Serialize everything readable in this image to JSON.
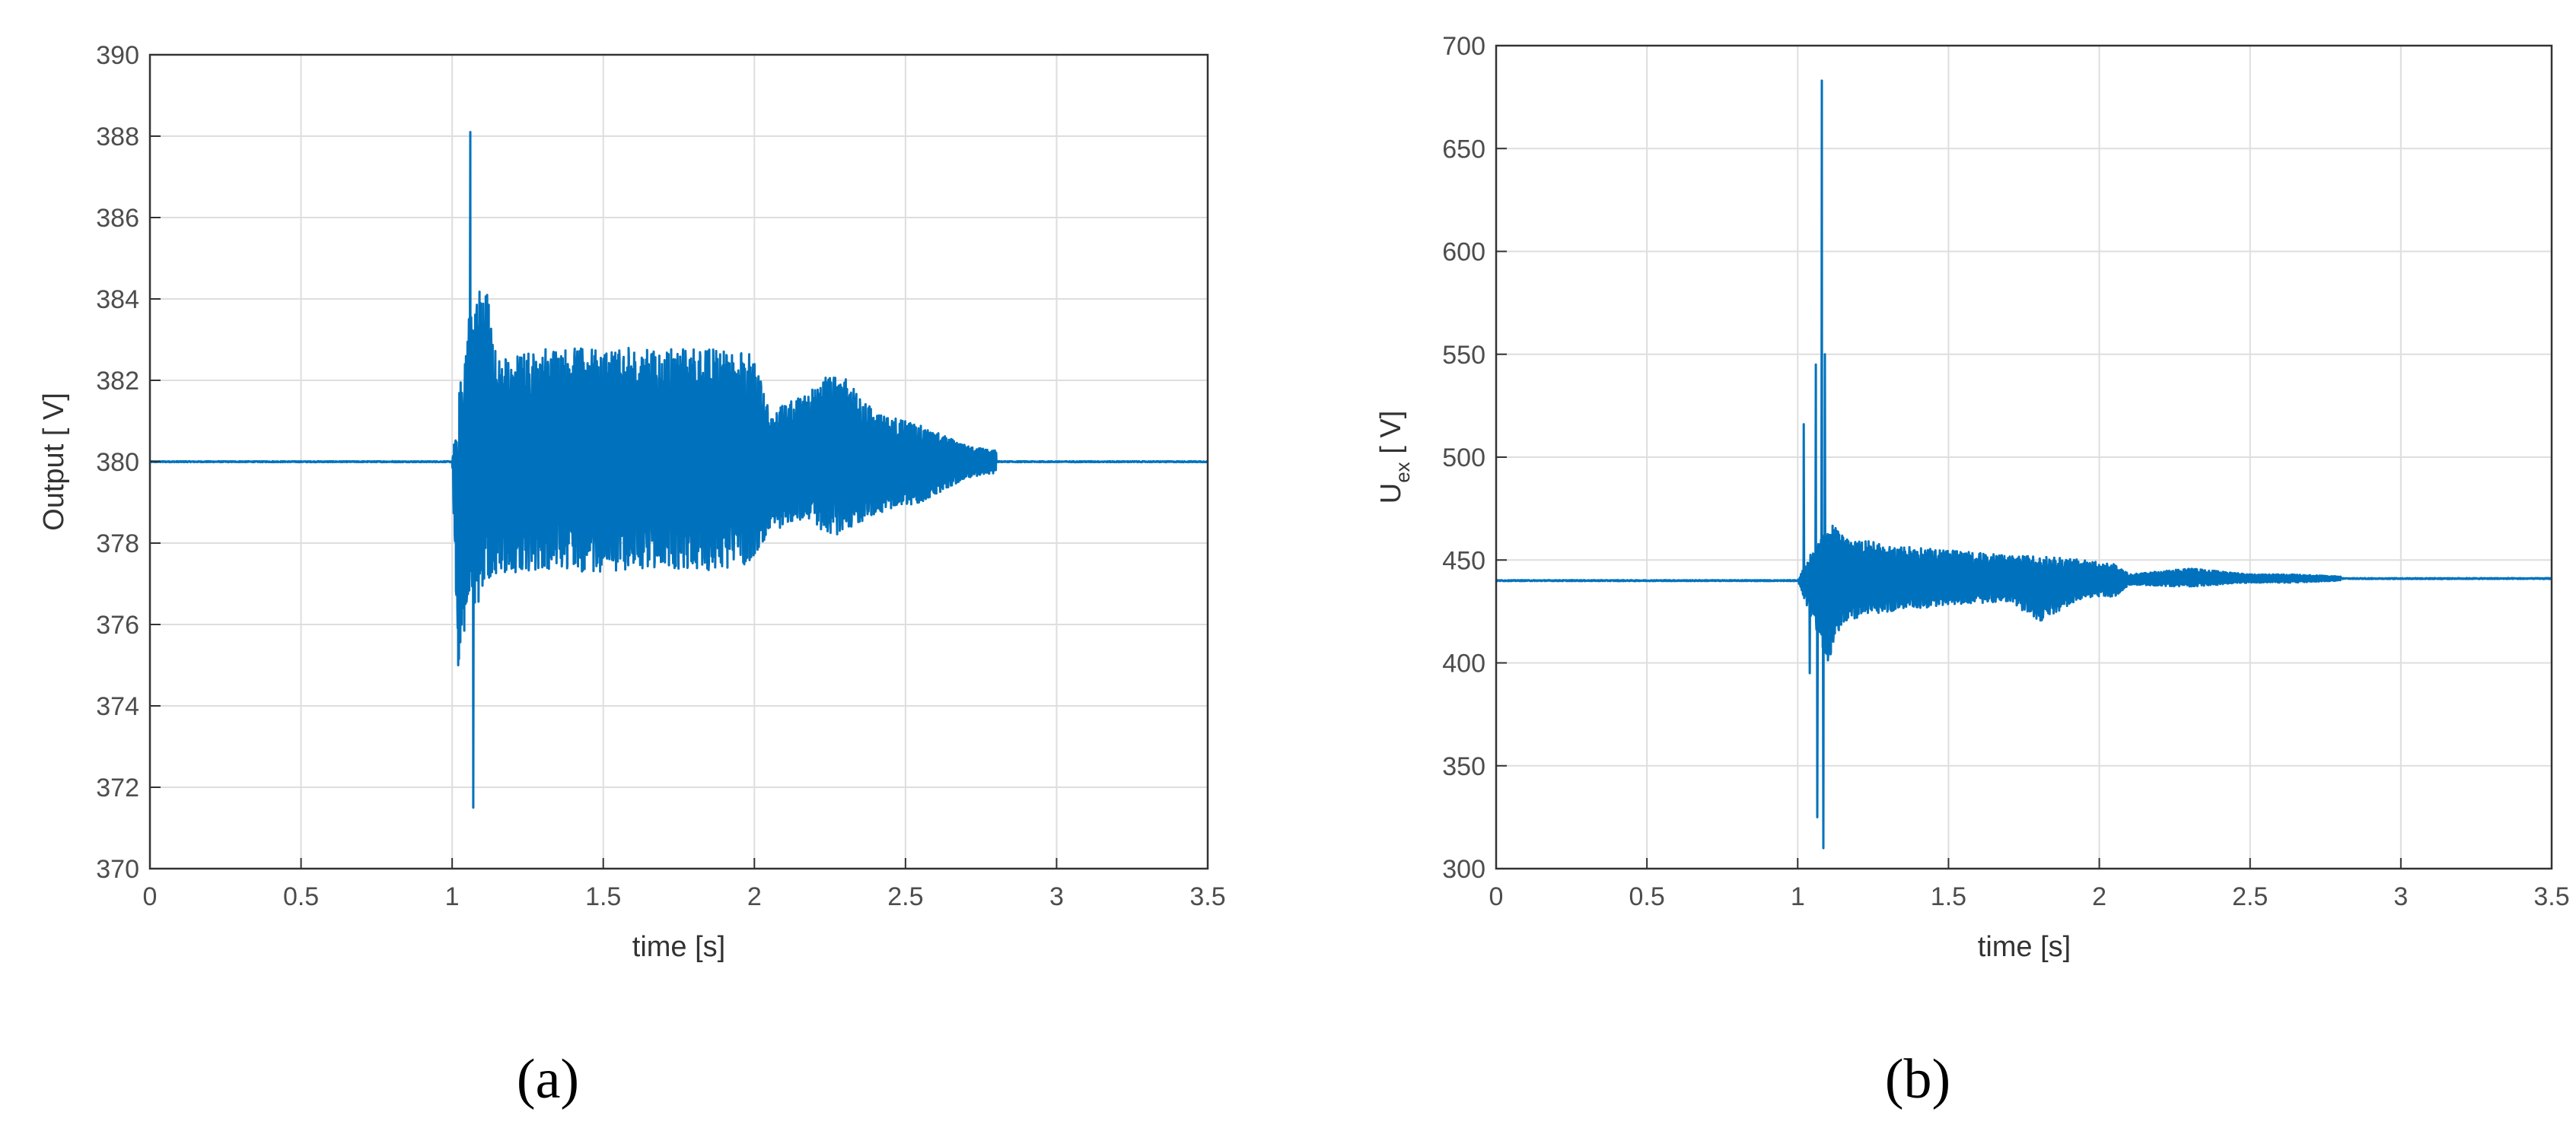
{
  "chart_data": [
    {
      "type": "line",
      "panel_label": "(a)",
      "title": "",
      "xlabel": "time [s]",
      "ylabel": "Output [ V]",
      "xlim": [
        0,
        3.5
      ],
      "ylim": [
        370,
        390
      ],
      "xticks": [
        0,
        0.5,
        1,
        1.5,
        2,
        2.5,
        3,
        3.5
      ],
      "xtick_labels": [
        "0",
        "0.5",
        "1",
        "1.5",
        "2",
        "2.5",
        "3",
        "3.5"
      ],
      "yticks": [
        370,
        372,
        374,
        376,
        378,
        380,
        382,
        384,
        386,
        388,
        390
      ],
      "ytick_labels": [
        "370",
        "372",
        "374",
        "376",
        "378",
        "380",
        "382",
        "384",
        "386",
        "388",
        "390"
      ],
      "grid": true,
      "line_color": "#0072bd",
      "series": [
        {
          "steady_value": 380,
          "disturbance_start": 1.0,
          "peaks": [
            {
              "x": 1.02,
              "y": 375.0
            },
            {
              "x": 1.06,
              "y": 388.1
            },
            {
              "x": 1.07,
              "y": 371.5
            }
          ],
          "envelope": [
            {
              "x": 1.0,
              "upper": 380.0,
              "lower": 380.0
            },
            {
              "x": 1.02,
              "upper": 381.5,
              "lower": 375.0
            },
            {
              "x": 1.05,
              "upper": 383.5,
              "lower": 376.2
            },
            {
              "x": 1.08,
              "upper": 384.3,
              "lower": 376.3
            },
            {
              "x": 1.12,
              "upper": 384.2,
              "lower": 377.0
            },
            {
              "x": 1.15,
              "upper": 382.5,
              "lower": 377.2
            },
            {
              "x": 1.3,
              "upper": 382.8,
              "lower": 377.3
            },
            {
              "x": 1.5,
              "upper": 382.8,
              "lower": 377.3
            },
            {
              "x": 1.7,
              "upper": 382.8,
              "lower": 377.4
            },
            {
              "x": 1.85,
              "upper": 382.8,
              "lower": 377.3
            },
            {
              "x": 2.0,
              "upper": 382.7,
              "lower": 377.5
            },
            {
              "x": 2.05,
              "upper": 381.2,
              "lower": 378.3
            },
            {
              "x": 2.15,
              "upper": 381.6,
              "lower": 378.5
            },
            {
              "x": 2.27,
              "upper": 382.3,
              "lower": 378.2
            },
            {
              "x": 2.4,
              "upper": 381.2,
              "lower": 378.7
            },
            {
              "x": 2.55,
              "upper": 380.9,
              "lower": 379.0
            },
            {
              "x": 2.7,
              "upper": 380.4,
              "lower": 379.6
            },
            {
              "x": 2.9,
              "upper": 380.15,
              "lower": 379.85
            },
            {
              "x": 3.1,
              "upper": 380.05,
              "lower": 379.95
            },
            {
              "x": 3.5,
              "upper": 380.05,
              "lower": 379.95
            }
          ]
        }
      ]
    },
    {
      "type": "line",
      "panel_label": "(b)",
      "title": "",
      "xlabel": "time [s]",
      "ylabel_main": "U",
      "ylabel_sub": "ex",
      "ylabel_unit": " [ V]",
      "xlim": [
        0,
        3.5
      ],
      "ylim": [
        300,
        700
      ],
      "xticks": [
        0,
        0.5,
        1,
        1.5,
        2,
        2.5,
        3,
        3.5
      ],
      "xtick_labels": [
        "0",
        "0.5",
        "1",
        "1.5",
        "2",
        "2.5",
        "3",
        "3.5"
      ],
      "yticks": [
        300,
        350,
        400,
        450,
        500,
        550,
        600,
        650,
        700
      ],
      "ytick_labels": [
        "300",
        "350",
        "400",
        "450",
        "500",
        "550",
        "600",
        "650",
        "700"
      ],
      "grid": true,
      "line_color": "#0072bd",
      "series": [
        {
          "steady_value": 440,
          "final_value": 441,
          "disturbance_start": 1.0,
          "peaks": [
            {
              "x": 1.02,
              "y": 516
            },
            {
              "x": 1.04,
              "y": 395
            },
            {
              "x": 1.06,
              "y": 545
            },
            {
              "x": 1.065,
              "y": 325
            },
            {
              "x": 1.08,
              "y": 683
            },
            {
              "x": 1.085,
              "y": 310
            },
            {
              "x": 1.09,
              "y": 550
            }
          ],
          "envelope": [
            {
              "x": 1.0,
              "upper": 440,
              "lower": 440
            },
            {
              "x": 1.1,
              "upper": 470,
              "lower": 400
            },
            {
              "x": 1.15,
              "upper": 462,
              "lower": 420
            },
            {
              "x": 1.3,
              "upper": 457,
              "lower": 425
            },
            {
              "x": 1.5,
              "upper": 455,
              "lower": 428
            },
            {
              "x": 1.7,
              "upper": 452,
              "lower": 430
            },
            {
              "x": 1.8,
              "upper": 452,
              "lower": 420
            },
            {
              "x": 1.95,
              "upper": 450,
              "lower": 432
            },
            {
              "x": 2.05,
              "upper": 448,
              "lower": 432
            },
            {
              "x": 2.1,
              "upper": 443,
              "lower": 438
            },
            {
              "x": 2.3,
              "upper": 446,
              "lower": 437
            },
            {
              "x": 2.5,
              "upper": 443,
              "lower": 439
            },
            {
              "x": 2.65,
              "upper": 443,
              "lower": 439
            },
            {
              "x": 2.8,
              "upper": 442,
              "lower": 440
            },
            {
              "x": 3.5,
              "upper": 442,
              "lower": 440
            }
          ]
        }
      ]
    }
  ]
}
